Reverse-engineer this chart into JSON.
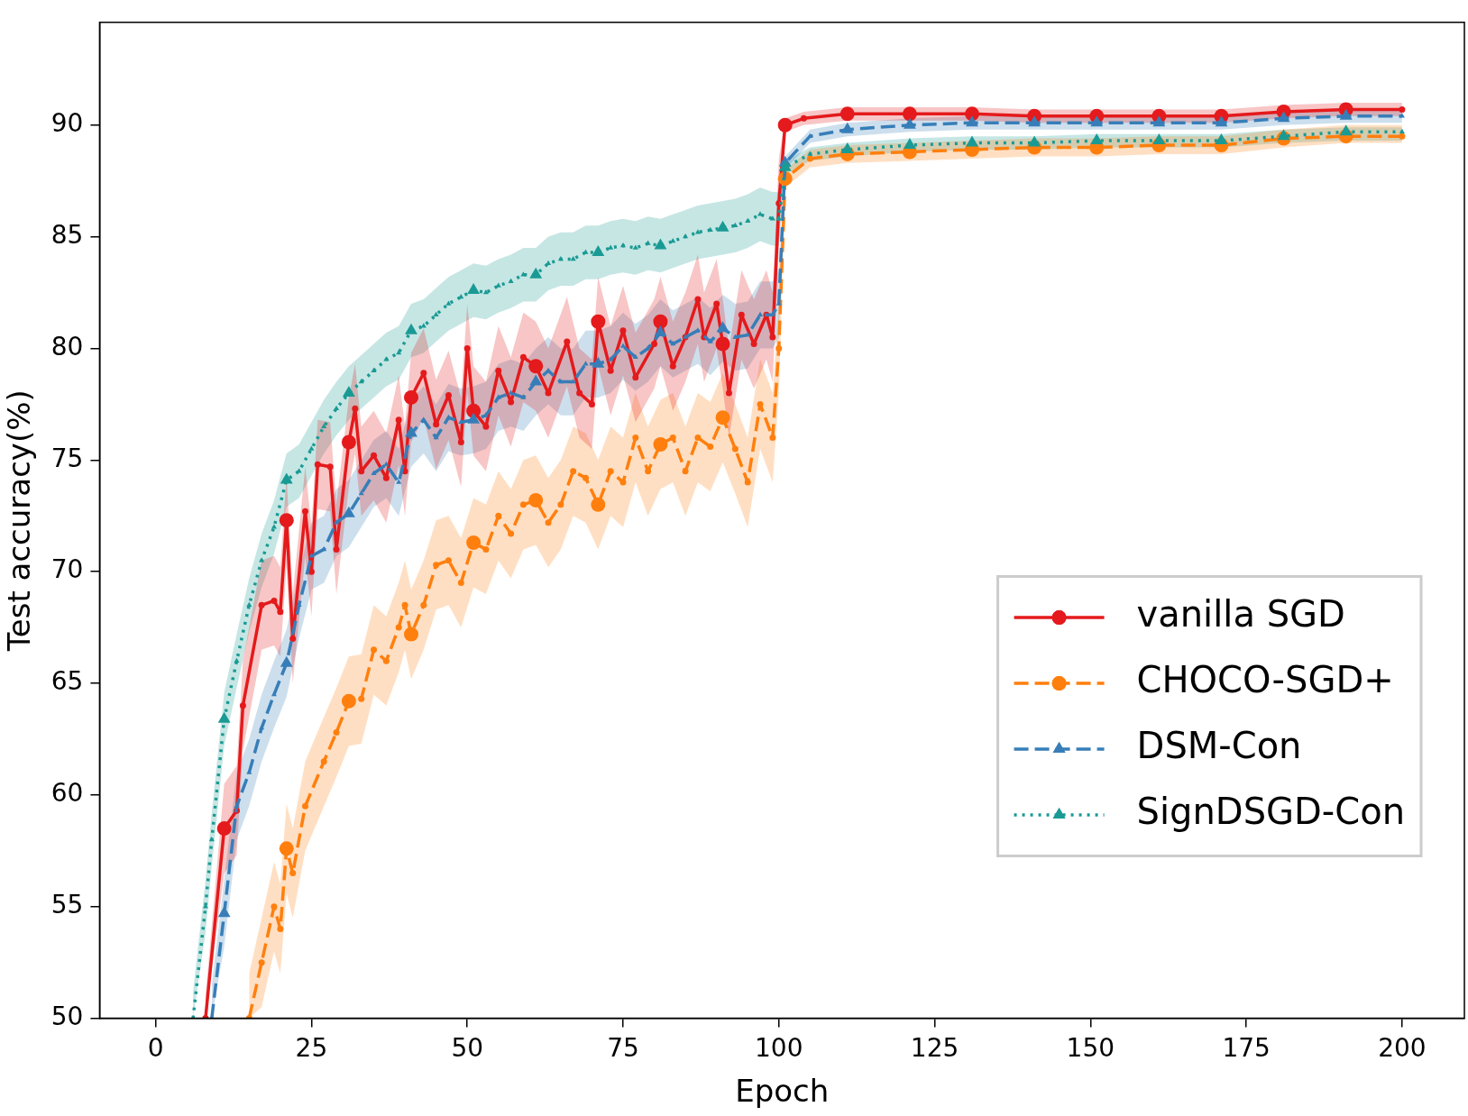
{
  "chart_data": {
    "type": "line",
    "xlabel": "Epoch",
    "ylabel": "Test accuracy(%)",
    "xlim": [
      -9,
      210
    ],
    "ylim": [
      50,
      94.6
    ],
    "xticks": [
      0,
      25,
      50,
      75,
      100,
      125,
      150,
      175,
      200
    ],
    "yticks": [
      50,
      55,
      60,
      65,
      70,
      75,
      80,
      85,
      90
    ],
    "grid": false,
    "legend": "bottom right",
    "series": [
      {
        "name": "vanilla SGD",
        "color": "#e41a1c",
        "marker": "circle",
        "line_style": "solid",
        "x": [
          8,
          11,
          13,
          14,
          17,
          19,
          20,
          21,
          22,
          24,
          25,
          26,
          28,
          29,
          31,
          32,
          33,
          35,
          37,
          39,
          40,
          41,
          43,
          45,
          47,
          49,
          50,
          51,
          53,
          55,
          57,
          59,
          61,
          63,
          66,
          68,
          70,
          71,
          73,
          75,
          77,
          80,
          81,
          83,
          85,
          87,
          88,
          90,
          91,
          92,
          94,
          96,
          98,
          99,
          100,
          101,
          104,
          111,
          121,
          131,
          141,
          151,
          161,
          171,
          181,
          191,
          200
        ],
        "values": [
          50,
          58.5,
          59.3,
          64,
          68.5,
          68.7,
          68.2,
          72.3,
          67,
          72.7,
          70,
          74.8,
          74.7,
          71,
          75.8,
          77.3,
          74.5,
          75.2,
          74.2,
          76.8,
          74.5,
          77.8,
          78.9,
          76.6,
          77.9,
          75.8,
          80,
          77.2,
          76.5,
          79,
          77.6,
          79.6,
          79.2,
          78,
          80.3,
          78,
          77.5,
          81.2,
          79,
          80.8,
          78.7,
          80.2,
          81.2,
          79.2,
          80.5,
          82.2,
          80.5,
          82,
          80.2,
          78,
          81.5,
          80.2,
          81.5,
          80.5,
          86.5,
          90,
          90.3,
          90.5,
          90.5,
          90.5,
          90.4,
          90.4,
          90.4,
          90.4,
          90.6,
          90.7,
          90.7
        ],
        "lower": [
          50,
          56.5,
          57.3,
          62,
          66.5,
          66.7,
          66.2,
          70.3,
          65,
          70.7,
          68,
          72.8,
          72.7,
          69,
          73.8,
          75.3,
          72.5,
          73.2,
          72.2,
          74.8,
          72.5,
          75.8,
          76.9,
          74.6,
          75.9,
          73.8,
          78,
          75.2,
          74.5,
          77,
          75.6,
          77.6,
          77.2,
          76,
          78.3,
          76,
          75.5,
          79.2,
          77,
          78.8,
          76.7,
          78.2,
          79.2,
          77.2,
          78.5,
          80.2,
          78.5,
          80,
          78.2,
          76,
          79.5,
          78.2,
          79.5,
          78.5,
          84.5,
          89.7,
          90,
          90.2,
          90.2,
          90.2,
          90.1,
          90.1,
          90.1,
          90.1,
          90.3,
          90.4,
          90.4
        ],
        "upper": [
          51,
          60.5,
          61.3,
          66,
          70.5,
          70.7,
          70.2,
          74.3,
          69,
          74.7,
          72,
          76.8,
          76.7,
          73,
          77.8,
          79.3,
          76.5,
          77.2,
          76.2,
          78.8,
          76.5,
          79.8,
          80.9,
          78.6,
          79.9,
          77.8,
          82,
          79.2,
          78.5,
          81,
          79.6,
          81.6,
          81.2,
          80,
          82.3,
          80,
          79.5,
          83.2,
          81,
          82.8,
          80.7,
          82.2,
          83.2,
          81.2,
          82.5,
          84.2,
          82.5,
          84,
          82.2,
          80,
          83.5,
          82.2,
          83.5,
          82.5,
          88.5,
          90.3,
          90.6,
          90.8,
          90.8,
          90.8,
          90.7,
          90.7,
          90.7,
          90.7,
          90.9,
          91,
          91
        ]
      },
      {
        "name": "CHOCO-SGD+",
        "color": "#ff7f0e",
        "marker": "circle",
        "line_style": "dashed",
        "x": [
          15,
          17,
          19,
          20,
          21,
          22,
          24,
          27,
          29,
          31,
          33,
          35,
          37,
          39,
          40,
          41,
          43,
          45,
          47,
          49,
          51,
          53,
          55,
          57,
          59,
          61,
          63,
          65,
          67,
          69,
          71,
          73,
          75,
          77,
          79,
          81,
          83,
          85,
          87,
          89,
          91,
          93,
          95,
          97,
          99,
          100,
          101,
          105,
          111,
          121,
          131,
          141,
          151,
          161,
          171,
          181,
          191,
          200
        ],
        "values": [
          50,
          52.5,
          55,
          54,
          57.6,
          56.5,
          59.5,
          61.5,
          62.8,
          64.2,
          64.3,
          66.5,
          66,
          67.5,
          68.5,
          67.2,
          68.5,
          70.3,
          70.5,
          69.5,
          71.3,
          71,
          72.5,
          71.7,
          73,
          73.2,
          72.2,
          73,
          74.5,
          74.2,
          73,
          74.5,
          74,
          76,
          74.5,
          75.7,
          76,
          74.5,
          76,
          75.6,
          76.9,
          75.5,
          74,
          77.5,
          76,
          80,
          87.6,
          88.5,
          88.7,
          88.8,
          88.9,
          89,
          89,
          89.1,
          89.1,
          89.4,
          89.5,
          89.5
        ],
        "lower": [
          50,
          50.5,
          53,
          52,
          55.6,
          54.5,
          57.5,
          59.5,
          60.8,
          62.2,
          62.3,
          64.5,
          64,
          65.5,
          66.5,
          65.2,
          66.5,
          68.3,
          68.5,
          67.5,
          69.3,
          69,
          70.5,
          69.7,
          71,
          71.2,
          70.2,
          71,
          72.5,
          72.2,
          71,
          72.5,
          72,
          74,
          72.5,
          73.7,
          74,
          72.5,
          74,
          73.6,
          74.9,
          73.5,
          72,
          75.5,
          74,
          78,
          87.2,
          88.1,
          88.3,
          88.4,
          88.5,
          88.6,
          88.6,
          88.7,
          88.7,
          89,
          89.2,
          89.2
        ],
        "upper": [
          52,
          54.5,
          57,
          56,
          59.6,
          58.5,
          61.5,
          63.5,
          64.8,
          66.2,
          66.3,
          68.5,
          68,
          69.5,
          70.5,
          69.2,
          70.5,
          72.3,
          72.5,
          71.5,
          73.3,
          73,
          74.5,
          73.7,
          75,
          75.2,
          74.2,
          75,
          76.5,
          76.2,
          75,
          76.5,
          76,
          78,
          76.5,
          77.7,
          78,
          76.5,
          78,
          77.6,
          78.9,
          77.5,
          76,
          79.5,
          78,
          82,
          88,
          88.9,
          89.1,
          89.2,
          89.3,
          89.4,
          89.4,
          89.5,
          89.5,
          89.8,
          90,
          90
        ]
      },
      {
        "name": "DSM-Con",
        "color": "#377eb8",
        "marker": "triangle",
        "line_style": "dashed",
        "x": [
          9,
          11,
          13,
          15,
          17,
          19,
          21,
          23,
          25,
          27,
          29,
          31,
          33,
          35,
          37,
          39,
          41,
          43,
          45,
          47,
          49,
          51,
          53,
          55,
          57,
          59,
          61,
          63,
          65,
          67,
          69,
          71,
          73,
          75,
          77,
          79,
          81,
          83,
          85,
          87,
          89,
          91,
          93,
          95,
          97,
          99,
          100,
          101,
          105,
          111,
          121,
          131,
          141,
          151,
          161,
          171,
          181,
          191,
          200
        ],
        "values": [
          50,
          54.7,
          59.5,
          61,
          63,
          64.5,
          65.9,
          68.5,
          70.7,
          71,
          72.2,
          72.6,
          73.5,
          74.4,
          74.8,
          74,
          76.2,
          76.8,
          76,
          76.9,
          76.7,
          76.8,
          77,
          77.8,
          78,
          77.8,
          78.5,
          79,
          78.5,
          78.5,
          79.3,
          79.3,
          79.5,
          80.1,
          79.6,
          80,
          80.7,
          80.2,
          80.5,
          80.8,
          80.3,
          80.9,
          80.5,
          80.6,
          81.5,
          81.5,
          82,
          88.3,
          89.5,
          89.8,
          90,
          90.1,
          90.1,
          90.1,
          90.1,
          90.1,
          90.3,
          90.4,
          90.4
        ],
        "lower": [
          50,
          53.2,
          58,
          59.5,
          61.5,
          63,
          64.4,
          67,
          69.2,
          69.5,
          70.7,
          71.1,
          72,
          72.9,
          73.3,
          72.5,
          74.7,
          75.3,
          74.5,
          75.4,
          75.2,
          75.3,
          75.5,
          76.3,
          76.5,
          76.3,
          77,
          77.5,
          77,
          77,
          77.8,
          77.8,
          78,
          78.6,
          78.1,
          78.5,
          79.2,
          78.7,
          79,
          79.3,
          78.8,
          79.4,
          79,
          79.1,
          80,
          80,
          80.5,
          88,
          89.2,
          89.5,
          89.7,
          89.8,
          89.8,
          89.8,
          89.8,
          89.8,
          90,
          90.1,
          90.1
        ],
        "upper": [
          51.5,
          56.2,
          61,
          62.5,
          64.5,
          66,
          67.4,
          70,
          72.2,
          72.5,
          73.7,
          74.1,
          75,
          75.9,
          76.3,
          75.5,
          77.7,
          78.3,
          77.5,
          78.4,
          78.2,
          78.3,
          78.5,
          79.3,
          79.5,
          79.3,
          80,
          80.5,
          80,
          80,
          80.8,
          80.8,
          81,
          81.6,
          81.1,
          81.5,
          82.2,
          81.7,
          82,
          82.3,
          81.8,
          82.4,
          82,
          82.1,
          83,
          83,
          83.5,
          88.6,
          89.8,
          90.1,
          90.3,
          90.4,
          90.4,
          90.4,
          90.4,
          90.4,
          90.6,
          90.7,
          90.7
        ]
      },
      {
        "name": "SignDSGD-Con",
        "color": "#1a9a94",
        "marker": "triangle",
        "line_style": "dotted",
        "x": [
          6,
          8,
          9,
          11,
          13,
          15,
          17,
          19,
          21,
          23,
          25,
          27,
          29,
          31,
          33,
          35,
          37,
          39,
          41,
          43,
          45,
          47,
          49,
          51,
          53,
          55,
          57,
          59,
          61,
          63,
          65,
          67,
          69,
          71,
          73,
          75,
          77,
          79,
          81,
          83,
          85,
          87,
          89,
          91,
          93,
          95,
          97,
          99,
          100,
          101,
          105,
          111,
          121,
          131,
          141,
          151,
          161,
          171,
          181,
          191,
          200
        ],
        "values": [
          50,
          55,
          58,
          63.4,
          66,
          68.5,
          70.5,
          72,
          74.1,
          74.5,
          75.5,
          76.5,
          77.3,
          78,
          78.5,
          79,
          79.5,
          79.8,
          80.8,
          81,
          81.5,
          82,
          82.3,
          82.6,
          82.5,
          82.8,
          83,
          83.3,
          83.3,
          83.8,
          84,
          84,
          84.3,
          84.3,
          84.5,
          84.6,
          84.5,
          84.7,
          84.6,
          84.8,
          85,
          85.2,
          85.3,
          85.4,
          85.5,
          85.7,
          86,
          85.8,
          85.8,
          88.1,
          88.7,
          88.9,
          89.1,
          89.2,
          89.2,
          89.3,
          89.3,
          89.3,
          89.5,
          89.7,
          89.7
        ],
        "lower": [
          50,
          53.8,
          56.8,
          62.2,
          64.8,
          67.3,
          69.3,
          70.8,
          72.9,
          73.3,
          74.3,
          75.3,
          76.1,
          76.8,
          77.3,
          77.8,
          78.3,
          78.6,
          79.6,
          79.8,
          80.3,
          80.8,
          81.1,
          81.4,
          81.3,
          81.6,
          81.8,
          82.1,
          82.1,
          82.6,
          82.8,
          82.8,
          83.1,
          83.1,
          83.3,
          83.4,
          83.3,
          83.5,
          83.4,
          83.6,
          83.8,
          84,
          84.1,
          84.2,
          84.3,
          84.5,
          84.8,
          84.6,
          84.6,
          87.8,
          88.4,
          88.6,
          88.8,
          88.9,
          88.9,
          89,
          89,
          89,
          89.2,
          89.3,
          89.3
        ],
        "upper": [
          51.2,
          56.2,
          59.2,
          64.6,
          67.2,
          69.7,
          71.7,
          73.2,
          75.3,
          75.7,
          76.7,
          77.7,
          78.5,
          79.2,
          79.7,
          80.2,
          80.7,
          81,
          82,
          82.2,
          82.7,
          83.2,
          83.5,
          83.8,
          83.7,
          84,
          84.2,
          84.5,
          84.5,
          85,
          85.2,
          85.2,
          85.5,
          85.5,
          85.7,
          85.8,
          85.7,
          85.9,
          85.8,
          86,
          86.2,
          86.4,
          86.5,
          86.6,
          86.7,
          86.9,
          87.2,
          87,
          87,
          88.4,
          89,
          89.2,
          89.4,
          89.5,
          89.5,
          89.6,
          89.6,
          89.6,
          89.8,
          89.9,
          89.9
        ]
      }
    ]
  }
}
